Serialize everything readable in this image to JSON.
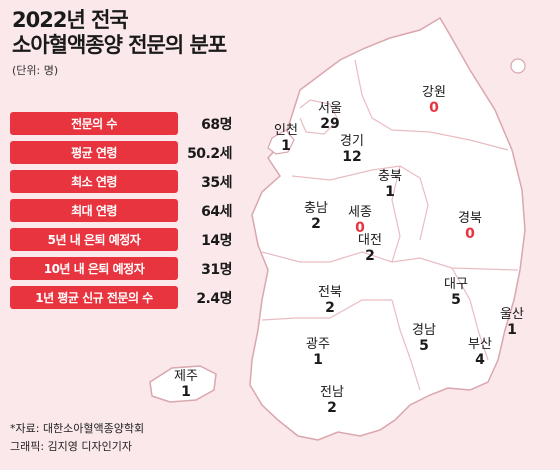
{
  "title_line1": "2022년 전국",
  "title_line2": "소아혈액종양 전문의 분포",
  "unit": "(단위: 명)",
  "stats": [
    {
      "label": "전문의 수",
      "value": "68명"
    },
    {
      "label": "평균 연령",
      "value": "50.2세"
    },
    {
      "label": "최소 연령",
      "value": "35세"
    },
    {
      "label": "최대 연령",
      "value": "64세"
    },
    {
      "label": "5년 내 은퇴 예정자",
      "value": "14명"
    },
    {
      "label": "10년 내 은퇴 예정자",
      "value": "31명"
    },
    {
      "label": "1년 평균 신규 전문의 수",
      "value": "2.4명"
    }
  ],
  "source": "*자료: 대한소아혈액종양학회",
  "graphic": "그래픽: 김지영 디자인기자",
  "colors": {
    "accent": "#e8343f",
    "background": "#fae8ea",
    "land": "#ffffff",
    "border": "#d9a7ad"
  },
  "chart_data": {
    "type": "table",
    "categories": [
      "서울",
      "인천",
      "경기",
      "강원",
      "충북",
      "충남",
      "세종",
      "대전",
      "경북",
      "대구",
      "전북",
      "울산",
      "광주",
      "경남",
      "부산",
      "전남",
      "제주"
    ],
    "values": [
      29,
      1,
      12,
      0,
      1,
      2,
      0,
      2,
      0,
      5,
      2,
      1,
      1,
      5,
      4,
      2,
      1
    ]
  }
}
